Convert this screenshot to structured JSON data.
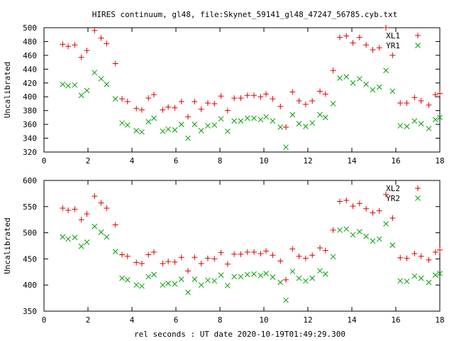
{
  "title": "HIRES continuum, gl48, file:Skynet_59141_gl48_47247_56785.cyb.txt",
  "xlabel": "rel seconds : UT date 2020-10-19T01:49:29.300",
  "colors": {
    "red": "#e00000",
    "green": "#00a000",
    "axes": "#000000"
  },
  "chart_data": [
    {
      "type": "scatter",
      "title": "HIRES continuum, gl48, file:Skynet_59141_gl48_47247_56785.cyb.txt",
      "xlabel": "",
      "ylabel": "Uncalibrated",
      "xlim": [
        0,
        18
      ],
      "ylim": [
        320,
        500
      ],
      "xticks": [
        0,
        2,
        4,
        6,
        8,
        10,
        12,
        14,
        16,
        18
      ],
      "yticks": [
        320,
        340,
        360,
        380,
        400,
        420,
        440,
        460,
        480,
        500
      ],
      "grid": false,
      "legend": "top-right",
      "x": [
        0.85,
        1.1,
        1.4,
        1.7,
        1.95,
        2.3,
        2.6,
        2.85,
        3.25,
        3.55,
        3.8,
        4.2,
        4.45,
        4.75,
        5.0,
        5.4,
        5.65,
        5.95,
        6.25,
        6.55,
        6.85,
        7.15,
        7.45,
        7.75,
        8.05,
        8.35,
        8.65,
        8.95,
        9.25,
        9.55,
        9.85,
        10.1,
        10.4,
        10.75,
        11.0,
        11.3,
        11.6,
        11.9,
        12.2,
        12.55,
        12.8,
        13.15,
        13.45,
        13.75,
        14.05,
        14.35,
        14.65,
        14.95,
        15.25,
        15.55,
        15.85,
        16.2,
        16.5,
        16.85,
        17.15,
        17.5,
        17.8,
        18.0
      ],
      "series": [
        {
          "name": "XL1",
          "marker": "plus",
          "color": "#e00000",
          "values": [
            476,
            473,
            475,
            457,
            467,
            496,
            485,
            477,
            448,
            397,
            393,
            383,
            381,
            398,
            403,
            381,
            385,
            384,
            393,
            371,
            393,
            382,
            391,
            390,
            401,
            380,
            398,
            398,
            402,
            402,
            400,
            404,
            397,
            386,
            356,
            407,
            394,
            389,
            394,
            408,
            404,
            438,
            486,
            488,
            478,
            486,
            475,
            468,
            471,
            500,
            460,
            391,
            391,
            399,
            394,
            388,
            403,
            405
          ]
        },
        {
          "name": "YR1",
          "marker": "cross",
          "color": "#00a000",
          "values": [
            418,
            416,
            417,
            402,
            409,
            435,
            426,
            418,
            397,
            362,
            359,
            351,
            349,
            364,
            369,
            350,
            353,
            352,
            360,
            340,
            360,
            351,
            358,
            359,
            368,
            350,
            365,
            365,
            369,
            369,
            367,
            371,
            365,
            356,
            327,
            374,
            361,
            357,
            362,
            374,
            370,
            390,
            427,
            429,
            420,
            426,
            418,
            410,
            414,
            438,
            408,
            358,
            357,
            365,
            361,
            354,
            367,
            370
          ]
        }
      ]
    },
    {
      "type": "scatter",
      "title": "",
      "xlabel": "rel seconds : UT date 2020-10-19T01:49:29.300",
      "ylabel": "Uncalibrated",
      "xlim": [
        0,
        18
      ],
      "ylim": [
        350,
        600
      ],
      "xticks": [
        0,
        2,
        4,
        6,
        8,
        10,
        12,
        14,
        16,
        18
      ],
      "yticks": [
        350,
        400,
        450,
        500,
        550,
        600
      ],
      "grid": false,
      "legend": "top-right",
      "x": [
        0.85,
        1.1,
        1.4,
        1.7,
        1.95,
        2.3,
        2.6,
        2.85,
        3.25,
        3.55,
        3.8,
        4.2,
        4.45,
        4.75,
        5.0,
        5.4,
        5.65,
        5.95,
        6.25,
        6.55,
        6.85,
        7.15,
        7.45,
        7.75,
        8.05,
        8.35,
        8.65,
        8.95,
        9.25,
        9.55,
        9.85,
        10.1,
        10.4,
        10.75,
        11.0,
        11.3,
        11.6,
        11.9,
        12.2,
        12.55,
        12.8,
        13.15,
        13.45,
        13.75,
        14.05,
        14.35,
        14.65,
        14.95,
        15.25,
        15.55,
        15.85,
        16.2,
        16.5,
        16.85,
        17.15,
        17.5,
        17.8,
        18.0
      ],
      "series": [
        {
          "name": "XL2",
          "marker": "plus",
          "color": "#e00000",
          "values": [
            547,
            543,
            545,
            525,
            536,
            570,
            557,
            547,
            515,
            458,
            455,
            443,
            441,
            458,
            463,
            441,
            445,
            444,
            453,
            427,
            453,
            441,
            451,
            450,
            462,
            440,
            459,
            459,
            463,
            463,
            460,
            465,
            457,
            446,
            410,
            469,
            455,
            451,
            457,
            471,
            466,
            505,
            560,
            562,
            551,
            556,
            546,
            538,
            542,
            573,
            528,
            452,
            451,
            460,
            455,
            448,
            463,
            467
          ]
        },
        {
          "name": "YR2",
          "marker": "cross",
          "color": "#00a000",
          "values": [
            492,
            488,
            491,
            474,
            482,
            512,
            501,
            492,
            464,
            413,
            410,
            400,
            398,
            416,
            420,
            400,
            403,
            402,
            411,
            386,
            411,
            400,
            409,
            408,
            419,
            399,
            416,
            416,
            420,
            421,
            418,
            422,
            415,
            405,
            371,
            426,
            413,
            408,
            413,
            427,
            421,
            454,
            505,
            507,
            496,
            502,
            493,
            484,
            488,
            517,
            476,
            408,
            407,
            417,
            413,
            405,
            419,
            422
          ]
        }
      ]
    }
  ]
}
